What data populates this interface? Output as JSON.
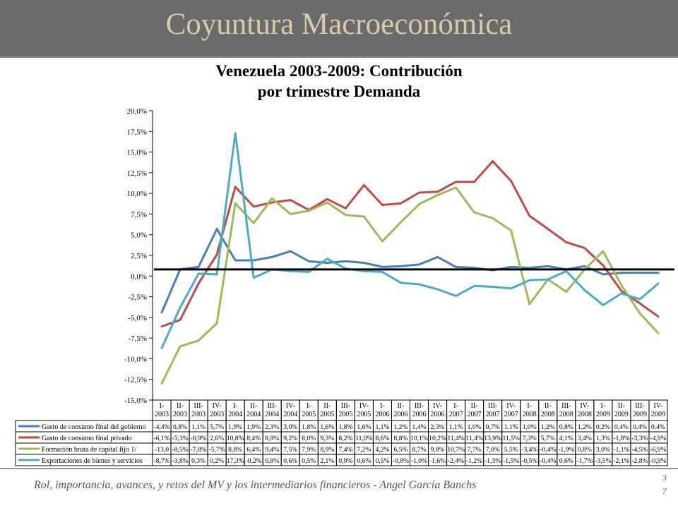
{
  "slide": {
    "title": "Coyuntura Macroeconómica",
    "footer_text": "Rol, importancia, avances, y retos del MV y los intermediarios financieros - Angel García Banchs",
    "page_number": "37"
  },
  "chart_data": {
    "type": "line",
    "title": "Venezuela 2003-2009: Contribución\npor trimestre Demanda",
    "ylim": [
      -15,
      20
    ],
    "y_tick_labels": [
      "20,0%",
      "17,5%",
      "15,0%",
      "12,5%",
      "10,0%",
      "7,5%",
      "5,0%",
      "2,5%",
      "0,0%",
      "-2,5%",
      "-5,0%",
      "-7,5%",
      "-10,0%",
      "-12,5%",
      "-15,0%"
    ],
    "grid": false,
    "legend": "bottom",
    "reference_line": 0.8,
    "categories": [
      "I-\n2003",
      "II-\n2003",
      "III-\n2003",
      "IV-\n2003",
      "I-\n2004",
      "II-\n2004",
      "III-\n2004",
      "IV-\n2004",
      "I-\n2005",
      "II-\n2005",
      "III-\n2005",
      "IV-\n2005",
      "I-\n2006",
      "II-\n2006",
      "III-\n2006",
      "IV-\n2006",
      "I-\n2007",
      "II-\n2007",
      "III-\n2007",
      "IV-\n2007",
      "I-\n2008",
      "II-\n2008",
      "III-\n2008",
      "IV-\n2008",
      "I-\n2009",
      "II-\n2009",
      "III-\n2009",
      "IV-\n2009"
    ],
    "series": [
      {
        "name": "Gasto de consumo final del gobierno",
        "color": "#4a7ebb",
        "values": [
          -4.4,
          0.8,
          1.1,
          5.7,
          1.9,
          1.9,
          2.3,
          3.0,
          1.8,
          1.6,
          1.8,
          1.6,
          1.1,
          1.2,
          1.4,
          2.3,
          1.1,
          1.0,
          0.7,
          1.1,
          1.0,
          1.2,
          0.8,
          1.2,
          0.2,
          0.4,
          0.4,
          0.4
        ],
        "labels": [
          "-4,4%",
          "0,8%",
          "1,1%",
          "5,7%",
          "1,9%",
          "1,9%",
          "2,3%",
          "3,0%",
          "1,8%",
          "1,6%",
          "1,8%",
          "1,6%",
          "1,1%",
          "1,2%",
          "1,4%",
          "2,3%",
          "1,1%",
          "1,0%",
          "0,7%",
          "1,1%",
          "1,0%",
          "1,2%",
          "0,8%",
          "1,2%",
          "0,2%",
          "0,4%",
          "0,4%",
          "0,4%"
        ]
      },
      {
        "name": "Gasto de consumo final privado",
        "color": "#be4b48",
        "values": [
          -6.1,
          -5.3,
          -0.9,
          2.6,
          10.8,
          8.4,
          8.9,
          9.2,
          8.0,
          9.3,
          8.2,
          11.0,
          8.6,
          8.8,
          10.1,
          10.2,
          11.4,
          11.4,
          13.9,
          11.5,
          7.3,
          5.7,
          4.1,
          3.4,
          1.3,
          -1.8,
          -3.3,
          -4.9
        ],
        "labels": [
          "-6,1%",
          "-5,3%",
          "-0,9%",
          "2,6%",
          "10,8%",
          "8,4%",
          "8,9%",
          "9,2%",
          "8,0%",
          "9,3%",
          "8,2%",
          "11,0%",
          "8,6%",
          "8,8%",
          "10,1%",
          "10,2%",
          "11,4%",
          "11,4%",
          "13,9%",
          "11,5%",
          "7,3%",
          "5,7%",
          "4,1%",
          "3,4%",
          "1,3%",
          "-1,8%",
          "-3,3%",
          "-4,9%"
        ]
      },
      {
        "name": "Formación bruta de capital fijo 1/",
        "color": "#9bbb59",
        "values": [
          -13.0,
          -8.5,
          -7.8,
          -5.7,
          8.8,
          6.4,
          9.4,
          7.5,
          7.9,
          8.9,
          7.4,
          7.2,
          4.2,
          6.5,
          8.7,
          9.8,
          10.7,
          7.7,
          7.0,
          5.5,
          -3.4,
          -0.4,
          -1.9,
          0.8,
          3.0,
          -1.1,
          -4.5,
          -6.9
        ],
        "labels": [
          "-13,0",
          "-8,5%",
          "-7,8%",
          "-5,7%",
          "8,8%",
          "6,4%",
          "9,4%",
          "7,5%",
          "7,9%",
          "8,9%",
          "7,4%",
          "7,2%",
          "4,2%",
          "6,5%",
          "8,7%",
          "9,8%",
          "10,7%",
          "7,7%",
          "7,0%",
          "5,5%",
          "-3,4%",
          "-0,4%",
          "-1,9%",
          "0,8%",
          "3,0%",
          "-1,1%",
          "-4,5%",
          "-6,9%"
        ]
      },
      {
        "name": "Exportaciones de bienes y servicios",
        "color": "#4bacc6",
        "values": [
          -8.7,
          -3.8,
          0.3,
          0.2,
          17.3,
          -0.2,
          0.8,
          0.6,
          0.5,
          2.1,
          0.9,
          0.6,
          0.5,
          -0.8,
          -1.0,
          -1.6,
          -2.4,
          -1.2,
          -1.3,
          -1.5,
          -0.5,
          -0.4,
          0.6,
          -1.7,
          -3.5,
          -2.1,
          -2.8,
          -0.9
        ],
        "labels": [
          "-8,7%",
          "-3,8%",
          "0,3%",
          "0,2%",
          "17,3%",
          "-0,2%",
          "0,8%",
          "0,6%",
          "0,5%",
          "2,1%",
          "0,9%",
          "0,6%",
          "0,5%",
          "-0,8%",
          "-1,0%",
          "-1,6%",
          "-2,4%",
          "-1,2%",
          "-1,3%",
          "-1,5%",
          "-0,5%",
          "-0,4%",
          "0,6%",
          "-1,7%",
          "-3,5%",
          "-2,1%",
          "-2,8%",
          "-0,9%"
        ]
      }
    ]
  }
}
